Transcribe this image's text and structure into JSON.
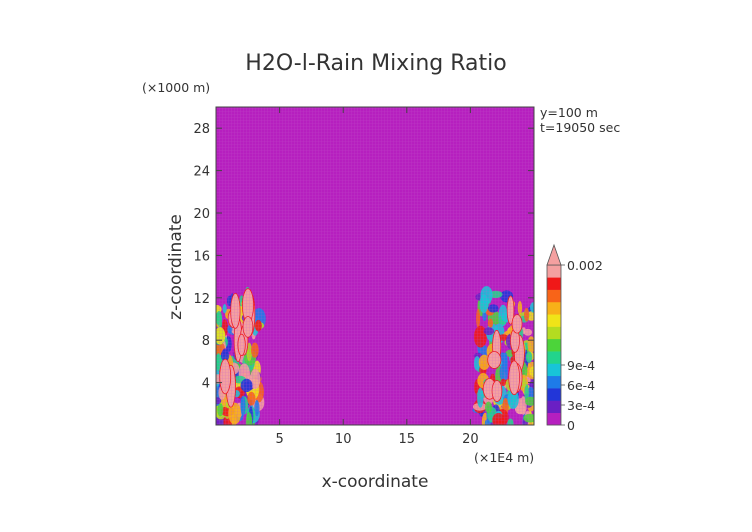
{
  "chart_data": {
    "type": "heatmap",
    "title": "H2O-l-Rain Mixing Ratio",
    "xlabel": "x-coordinate",
    "ylabel": "z-coordinate",
    "x_units": "(×1E4 m)",
    "y_units": "(×1000 m)",
    "annotations": [
      "y=100 m",
      "t=19050 sec"
    ],
    "xlim": [
      0,
      25
    ],
    "ylim": [
      0,
      30
    ],
    "x_ticks": [
      5,
      10,
      15,
      20
    ],
    "y_ticks": [
      4,
      8,
      12,
      16,
      20,
      24,
      28
    ],
    "grid": false,
    "background_value": 0,
    "background_color": "#b61fbf",
    "colorbar": {
      "range": [
        0,
        0.002
      ],
      "tick_values": [
        0,
        0.0003,
        0.0006,
        0.0009,
        0.002
      ],
      "tick_labels": [
        "0",
        "3e-4",
        "6e-4",
        "9e-4",
        "0.002"
      ],
      "colors": [
        "#b61fbf",
        "#6a1fc4",
        "#2236d8",
        "#1e7be8",
        "#18c4d8",
        "#22d48c",
        "#4cd43a",
        "#b4dc20",
        "#f0e418",
        "#f8b018",
        "#f86418",
        "#f01818",
        "#f4a0a0"
      ],
      "extend": "max"
    },
    "features": [
      {
        "name": "left-boundary-rain-region",
        "x_range": [
          0,
          3.5
        ],
        "z_range": [
          0,
          12.5
        ]
      },
      {
        "name": "right-boundary-rain-region",
        "x_range": [
          20.5,
          25
        ],
        "z_range": [
          0,
          12.5
        ]
      }
    ]
  }
}
